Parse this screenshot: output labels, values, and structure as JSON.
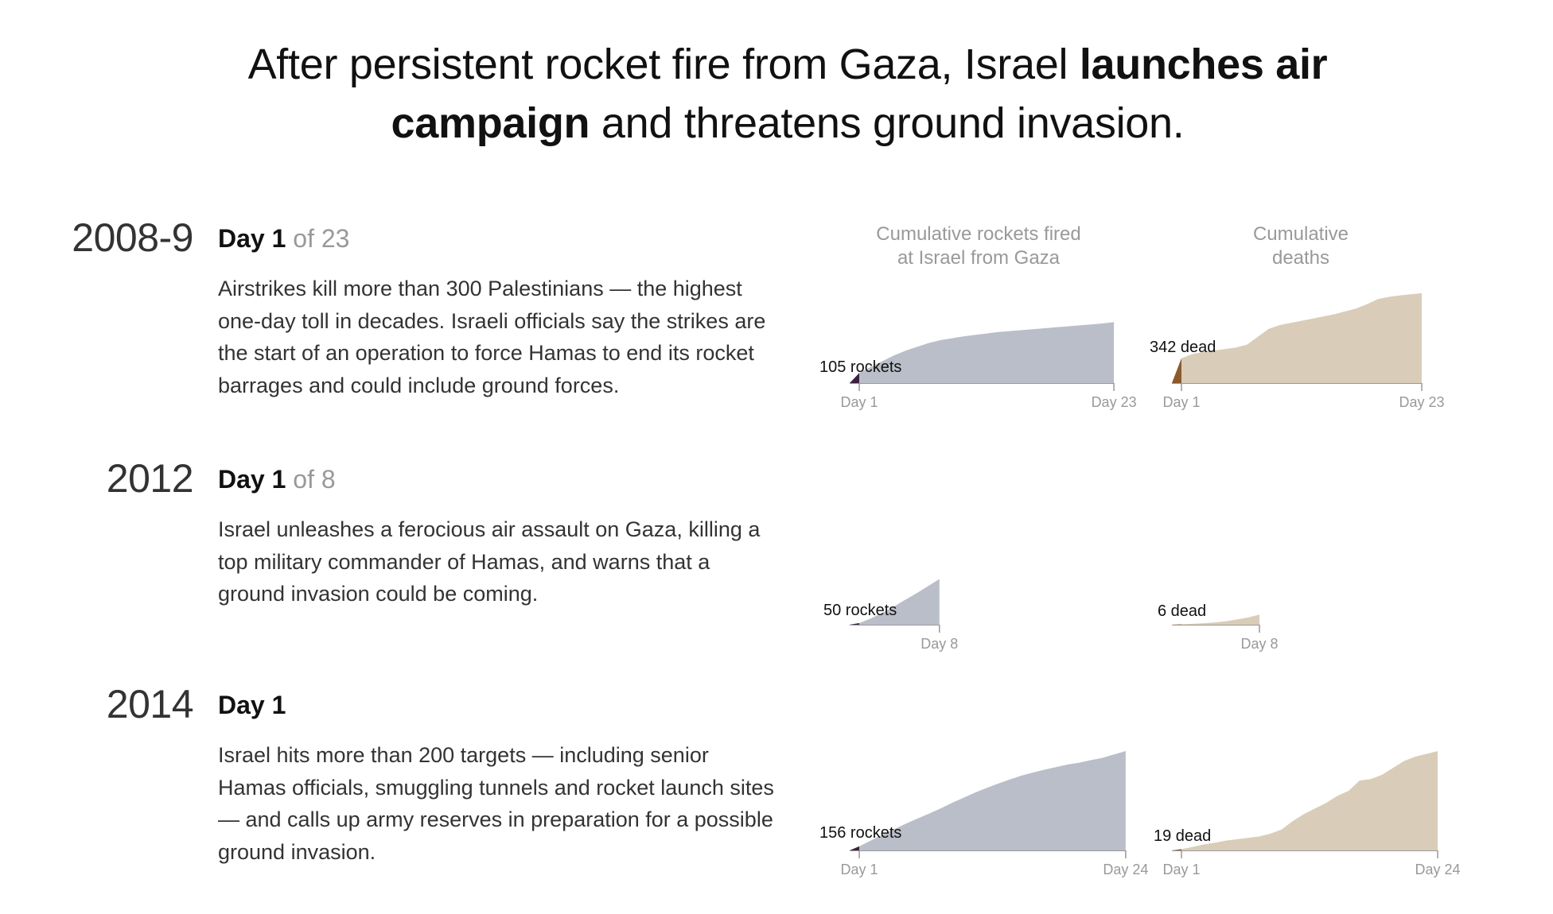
{
  "headline": {
    "part1": "After persistent rocket fire from Gaza, Israel ",
    "bold": "launches air campaign",
    "part2": " and threatens ground invasion."
  },
  "column_headers": {
    "rockets": [
      "Cumulative rockets fired",
      "at Israel from Gaza"
    ],
    "deaths": [
      "Cumulative",
      "deaths"
    ]
  },
  "rows": [
    {
      "year": "2008-9",
      "day": "Day 1",
      "of": " of 23",
      "description": "Airstrikes kill more than 300 Palestinians — the highest one-day toll in decades. Israeli officials say the strikes are the start of an operation to force Hamas to end its rocket barrages and could include ground forces."
    },
    {
      "year": "2012",
      "day": "Day 1",
      "of": " of 8",
      "description": "Israel unleashes a ferocious air assault on Gaza, killing a top military commander of Hamas, and warns that a ground invasion could be coming."
    },
    {
      "year": "2014",
      "day": "Day 1",
      "of": "",
      "description": "Israel hits more than 200 targets — including senior Hamas officials, smuggling tunnels and rocket launch sites — and calls up army reserves in preparation for a possible ground invasion."
    }
  ],
  "colors": {
    "rockets_fill": "#babec8",
    "rockets_highlight": "#3a2340",
    "deaths_fill": "#d9cdb9",
    "deaths_highlight": "#8b5a2b",
    "axis": "#999999",
    "tick_label": "#999999"
  },
  "chart_data": [
    {
      "type": "area",
      "conflict": "2008-9",
      "measure": "rockets",
      "x": [
        1,
        2,
        3,
        4,
        5,
        6,
        7,
        8,
        9,
        10,
        11,
        12,
        13,
        14,
        15,
        16,
        17,
        18,
        19,
        20,
        21,
        22,
        23
      ],
      "values": [
        105,
        170,
        230,
        290,
        340,
        380,
        420,
        450,
        470,
        490,
        505,
        520,
        535,
        545,
        555,
        565,
        575,
        585,
        595,
        605,
        615,
        625,
        640
      ],
      "highlight_day": 1,
      "label": "105 rockets",
      "tick_labels": [
        "Day 1",
        "Day 23"
      ],
      "ylim": [
        0,
        1000
      ]
    },
    {
      "type": "area",
      "conflict": "2008-9",
      "measure": "deaths",
      "x": [
        1,
        2,
        3,
        4,
        5,
        6,
        7,
        8,
        9,
        10,
        11,
        12,
        13,
        14,
        15,
        16,
        17,
        18,
        19,
        20,
        21,
        22,
        23
      ],
      "values": [
        342,
        400,
        430,
        450,
        470,
        490,
        530,
        640,
        750,
        800,
        830,
        860,
        890,
        920,
        950,
        990,
        1030,
        1090,
        1160,
        1190,
        1210,
        1225,
        1240
      ],
      "highlight_day": 1,
      "label": "342 dead",
      "tick_labels": [
        "Day 1",
        "Day 23"
      ],
      "ylim": [
        0,
        1250
      ]
    },
    {
      "type": "area",
      "conflict": "2012",
      "measure": "rockets",
      "x": [
        1,
        2,
        3,
        4,
        5,
        6,
        7,
        8
      ],
      "values": [
        50,
        190,
        360,
        550,
        760,
        960,
        1180,
        1400
      ],
      "highlight_day": 1,
      "label": "50 rockets",
      "tick_labels": [
        "Day 8"
      ],
      "ylim": [
        0,
        4500
      ]
    },
    {
      "type": "area",
      "conflict": "2012",
      "measure": "deaths",
      "x": [
        1,
        2,
        3,
        4,
        5,
        6,
        7,
        8
      ],
      "values": [
        6,
        13,
        20,
        32,
        48,
        72,
        100,
        140
      ],
      "highlight_day": 1,
      "label": "6 dead",
      "tick_labels": [
        "Day 8"
      ],
      "ylim": [
        0,
        1250
      ]
    },
    {
      "type": "area",
      "conflict": "2014",
      "measure": "rockets",
      "x": [
        1,
        2,
        3,
        4,
        5,
        6,
        7,
        8,
        9,
        10,
        11,
        12,
        13,
        14,
        15,
        16,
        17,
        18,
        19,
        20,
        21,
        22,
        23,
        24
      ],
      "values": [
        156,
        380,
        610,
        820,
        1030,
        1230,
        1420,
        1620,
        1840,
        2040,
        2240,
        2420,
        2590,
        2750,
        2900,
        3020,
        3130,
        3230,
        3330,
        3400,
        3500,
        3590,
        3720,
        3850
      ],
      "highlight_day": 1,
      "label": "156 rockets",
      "tick_labels": [
        "Day 1",
        "Day 24"
      ],
      "ylim": [
        0,
        3850
      ]
    },
    {
      "type": "area",
      "conflict": "2014",
      "measure": "deaths",
      "x": [
        1,
        2,
        3,
        4,
        5,
        6,
        7,
        8,
        9,
        10,
        11,
        12,
        13,
        14,
        15,
        16,
        17,
        18,
        19,
        20,
        21,
        22,
        23,
        24
      ],
      "values": [
        19,
        50,
        85,
        110,
        140,
        160,
        180,
        200,
        240,
        300,
        420,
        520,
        600,
        680,
        780,
        850,
        1000,
        1020,
        1080,
        1180,
        1280,
        1340,
        1380,
        1420
      ],
      "highlight_day": 1,
      "label": "19 dead",
      "tick_labels": [
        "Day 1",
        "Day 24"
      ],
      "ylim": [
        0,
        1420
      ]
    }
  ]
}
